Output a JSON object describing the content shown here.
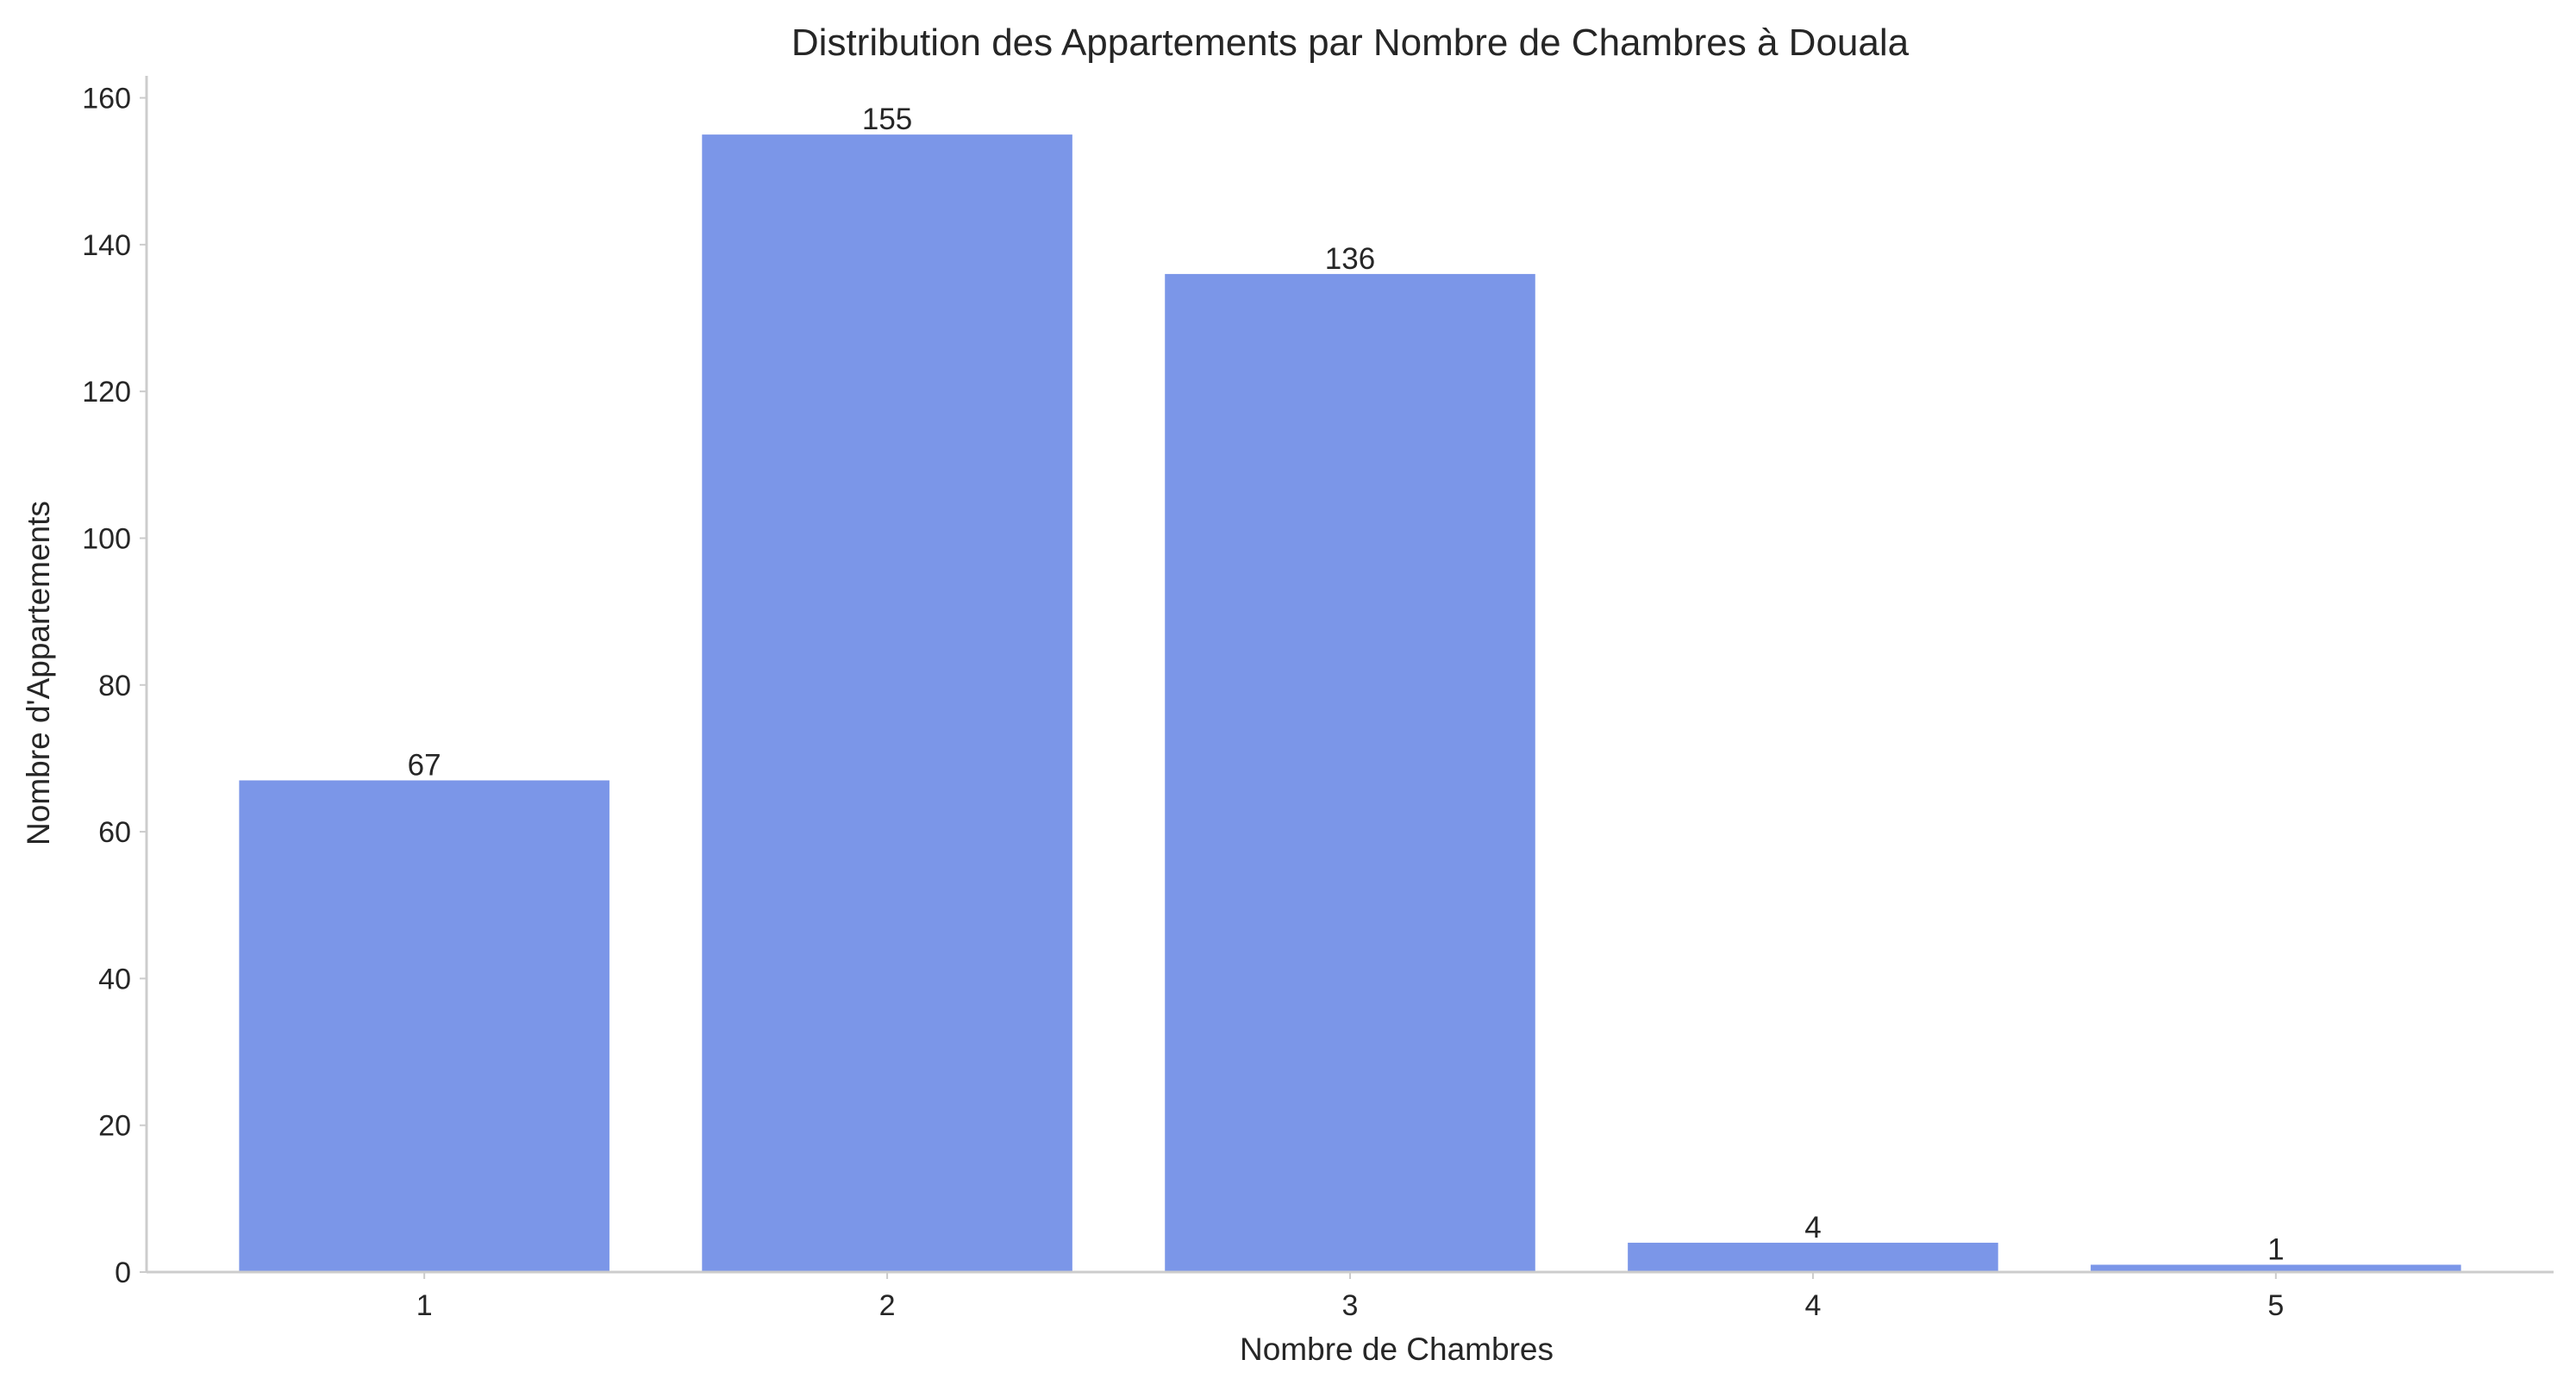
{
  "chart_data": {
    "type": "bar",
    "title": "Distribution des Appartements par Nombre de Chambres à Douala",
    "xlabel": "Nombre de Chambres",
    "ylabel": "Nombre d'Appartements",
    "categories": [
      "1",
      "2",
      "3",
      "4",
      "5"
    ],
    "values": [
      67,
      155,
      136,
      4,
      1
    ],
    "ylim": [
      0,
      163
    ],
    "yticks": [
      0,
      20,
      40,
      60,
      80,
      100,
      120,
      140,
      160
    ],
    "grid": false,
    "bar_color": "#7b96e8",
    "data_labels": true
  }
}
